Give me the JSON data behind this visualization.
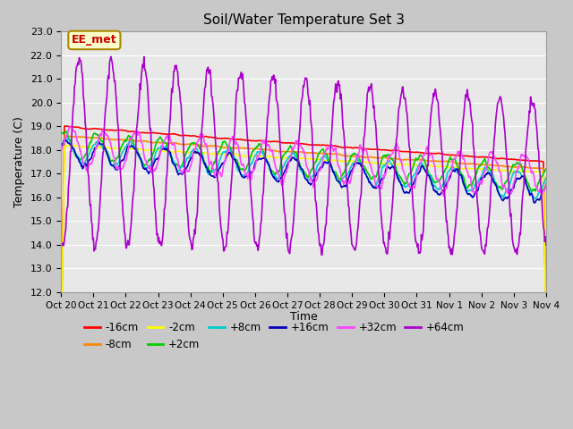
{
  "title": "Soil/Water Temperature Set 3",
  "xlabel": "Time",
  "ylabel": "Temperature (C)",
  "ylim": [
    12.0,
    23.0
  ],
  "yticks": [
    12.0,
    13.0,
    14.0,
    15.0,
    16.0,
    17.0,
    18.0,
    19.0,
    20.0,
    21.0,
    22.0,
    23.0
  ],
  "fig_bg": "#c8c8c8",
  "axes_bg": "#e8e8e8",
  "annotation_text": "EE_met",
  "annotation_bg": "#ffffcc",
  "annotation_border": "#aa8800",
  "series": {
    "-16cm": {
      "color": "#ff0000",
      "lw": 1.2
    },
    "-8cm": {
      "color": "#ff8800",
      "lw": 1.2
    },
    "-2cm": {
      "color": "#ffff00",
      "lw": 1.2
    },
    "+2cm": {
      "color": "#00cc00",
      "lw": 1.2
    },
    "+8cm": {
      "color": "#00cccc",
      "lw": 1.2
    },
    "+16cm": {
      "color": "#0000bb",
      "lw": 1.2
    },
    "+32cm": {
      "color": "#ff44ff",
      "lw": 1.2
    },
    "+64cm": {
      "color": "#aa00cc",
      "lw": 1.2
    }
  },
  "xtick_labels": [
    "Oct 20",
    "Oct 21",
    "Oct 22",
    "Oct 23",
    "Oct 24",
    "Oct 25",
    "Oct 26",
    "Oct 27",
    "Oct 28",
    "Oct 29",
    "Oct 30",
    "Oct 31",
    "Nov 1",
    "Nov 2",
    "Nov 3",
    "Nov 4"
  ],
  "n_days": 15,
  "n_pts_per_day": 48
}
